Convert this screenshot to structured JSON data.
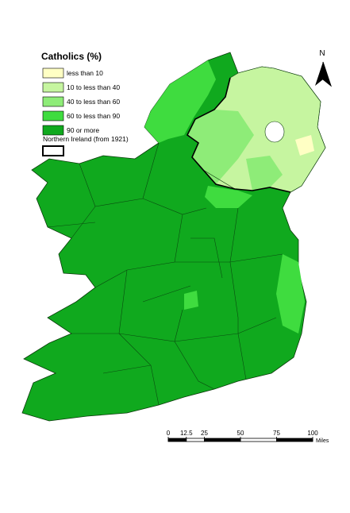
{
  "legend": {
    "title": "Catholics (%)",
    "items": [
      {
        "label": "less than 10",
        "color": "#ffffc4"
      },
      {
        "label": "10 to less than 40",
        "color": "#c6f5a0"
      },
      {
        "label": "40 to less than 60",
        "color": "#8eec78"
      },
      {
        "label": "60 to less than 90",
        "color": "#3fdc3f"
      },
      {
        "label": "90 or more",
        "color": "#10a91e"
      }
    ],
    "outline_label": "Northern Ireland (from 1921)"
  },
  "north": "N",
  "scale": {
    "ticks": [
      0,
      12.5,
      25,
      50,
      75,
      100
    ],
    "unit": "Miles"
  }
}
